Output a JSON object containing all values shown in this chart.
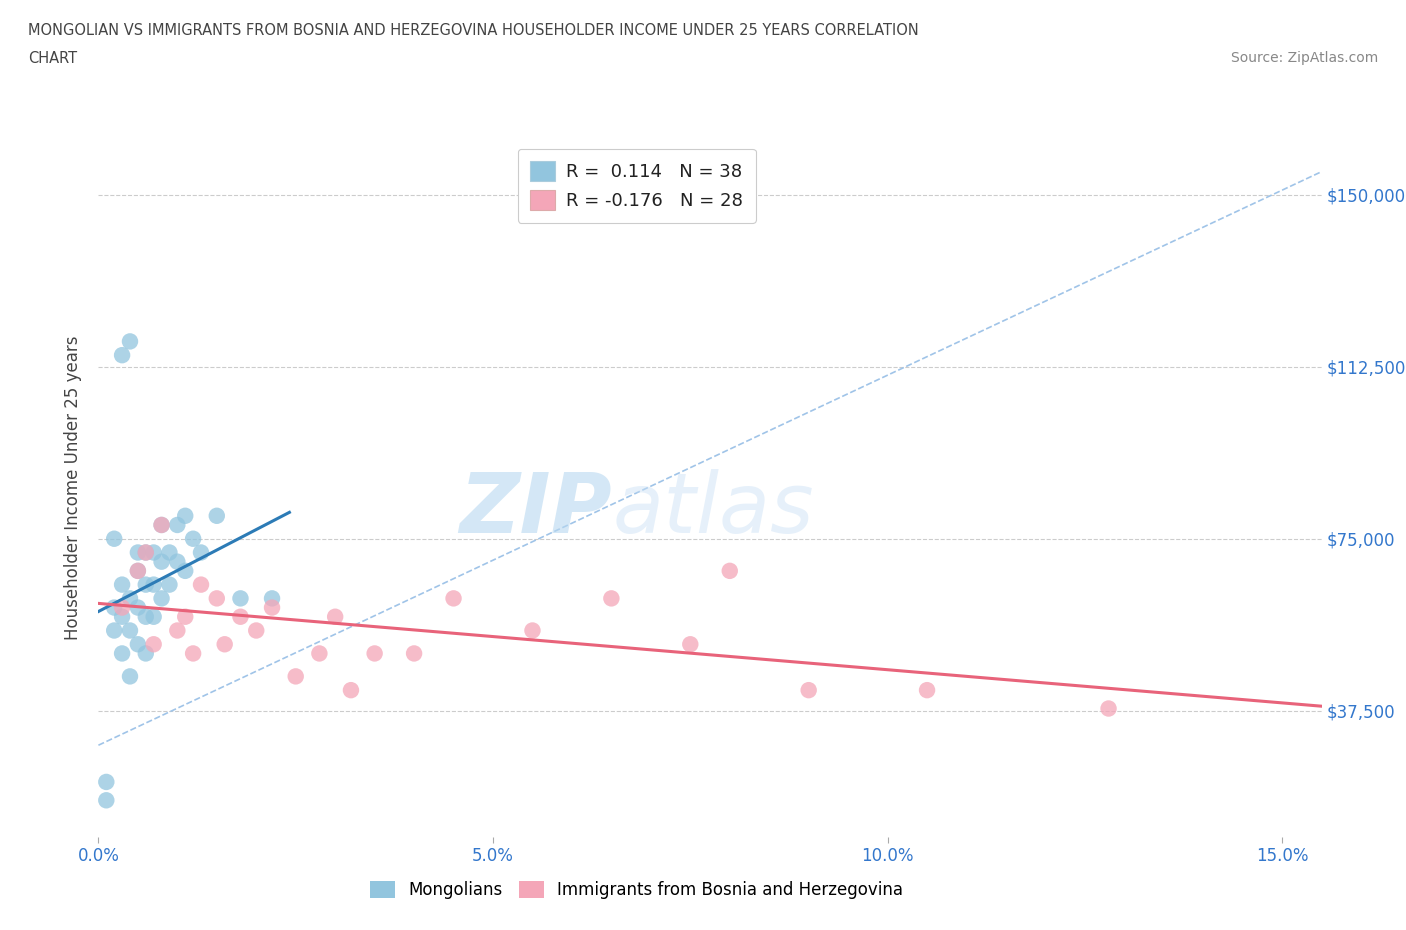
{
  "title_line1": "MONGOLIAN VS IMMIGRANTS FROM BOSNIA AND HERZEGOVINA HOUSEHOLDER INCOME UNDER 25 YEARS CORRELATION",
  "title_line2": "CHART",
  "source": "Source: ZipAtlas.com",
  "ylabel": "Householder Income Under 25 years",
  "xlim": [
    0.0,
    0.155
  ],
  "ylim": [
    10000,
    162000
  ],
  "yticks": [
    37500,
    75000,
    112500,
    150000
  ],
  "ytick_labels": [
    "$37,500",
    "$75,000",
    "$112,500",
    "$150,000"
  ],
  "xticks": [
    0.0,
    0.05,
    0.1,
    0.15
  ],
  "xtick_labels": [
    "0.0%",
    "5.0%",
    "10.0%",
    "15.0%"
  ],
  "mongolian_R": "0.114",
  "mongolian_N": "38",
  "bosnia_R": "-0.176",
  "bosnia_N": "28",
  "blue_color": "#92c5de",
  "blue_line_color": "#2c7bb6",
  "pink_color": "#f4a6b8",
  "pink_line_color": "#e8637a",
  "gray_dash_color": "#a0c4e8",
  "watermark_color": "#d6eaf8",
  "mongolian_x": [
    0.001,
    0.001,
    0.002,
    0.002,
    0.002,
    0.003,
    0.003,
    0.003,
    0.003,
    0.004,
    0.004,
    0.004,
    0.004,
    0.005,
    0.005,
    0.005,
    0.005,
    0.006,
    0.006,
    0.006,
    0.006,
    0.007,
    0.007,
    0.007,
    0.008,
    0.008,
    0.008,
    0.009,
    0.009,
    0.01,
    0.01,
    0.011,
    0.011,
    0.012,
    0.013,
    0.015,
    0.018,
    0.022
  ],
  "mongolian_y": [
    18000,
    22000,
    55000,
    60000,
    75000,
    50000,
    58000,
    65000,
    115000,
    45000,
    55000,
    62000,
    118000,
    52000,
    60000,
    68000,
    72000,
    50000,
    58000,
    65000,
    72000,
    58000,
    65000,
    72000,
    62000,
    70000,
    78000,
    65000,
    72000,
    70000,
    78000,
    68000,
    80000,
    75000,
    72000,
    80000,
    62000,
    62000
  ],
  "bosnia_x": [
    0.003,
    0.005,
    0.006,
    0.007,
    0.008,
    0.01,
    0.011,
    0.012,
    0.013,
    0.015,
    0.016,
    0.018,
    0.02,
    0.022,
    0.025,
    0.028,
    0.03,
    0.032,
    0.035,
    0.04,
    0.045,
    0.055,
    0.065,
    0.075,
    0.08,
    0.09,
    0.105,
    0.128
  ],
  "bosnia_y": [
    60000,
    68000,
    72000,
    52000,
    78000,
    55000,
    58000,
    50000,
    65000,
    62000,
    52000,
    58000,
    55000,
    60000,
    45000,
    50000,
    58000,
    42000,
    50000,
    50000,
    62000,
    55000,
    62000,
    52000,
    68000,
    42000,
    42000,
    38000
  ],
  "gray_line_x": [
    0.0,
    0.155
  ],
  "gray_line_y": [
    30000,
    155000
  ]
}
